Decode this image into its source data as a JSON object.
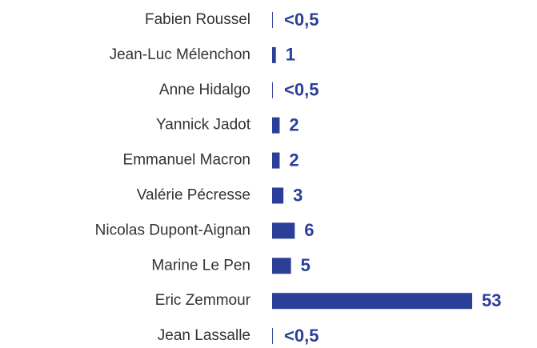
{
  "chart_data": {
    "type": "bar",
    "orientation": "horizontal",
    "color": "#2b3f98",
    "categories": [
      "Fabien Roussel",
      "Jean-Luc Mélenchon",
      "Anne Hidalgo",
      "Yannick Jadot",
      "Emmanuel Macron",
      "Valérie Pécresse",
      "Nicolas Dupont-Aignan",
      "Marine Le Pen",
      "Eric Zemmour",
      "Jean Lassalle"
    ],
    "values": [
      0.2,
      1,
      0.2,
      2,
      2,
      3,
      6,
      5,
      53,
      0.2
    ],
    "value_labels": [
      "<0,5",
      "1",
      "<0,5",
      "2",
      "2",
      "3",
      "6",
      "5",
      "53",
      "<0,5"
    ]
  }
}
